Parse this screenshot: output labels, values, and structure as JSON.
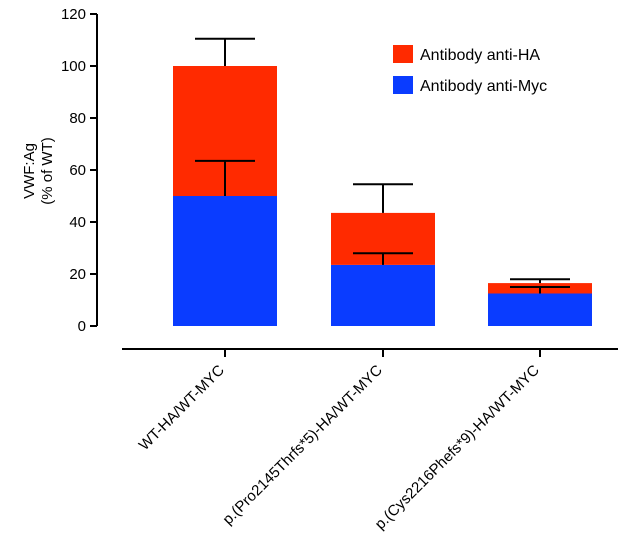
{
  "chart_data": {
    "type": "bar",
    "stacked": true,
    "categories": [
      "WT-HA/WT-MYC",
      "p.(Pro2145Thrfs*5)-HA/WT-MYC",
      "p.(Cys2216Phefs*9)-HA/WT-MYC"
    ],
    "series": [
      {
        "name": "Antibody anti-Myc",
        "color": "#0a3cff",
        "values": [
          50,
          23.5,
          12.5
        ],
        "error_top": [
          63.5,
          28,
          15
        ]
      },
      {
        "name": "Antibody anti-HA",
        "color": "#ff2a00",
        "values": [
          50,
          20,
          4
        ],
        "error_top": [
          110.5,
          54.5,
          18
        ]
      }
    ],
    "ylabel_lines": [
      "VWF:Ag",
      "(% of WT)"
    ],
    "ylim": [
      0,
      120
    ],
    "yticks": [
      0,
      20,
      40,
      60,
      80,
      100,
      120
    ],
    "grid": false,
    "legend_position": "top-right",
    "legend_order": [
      "Antibody anti-HA",
      "Antibody anti-Myc"
    ]
  }
}
